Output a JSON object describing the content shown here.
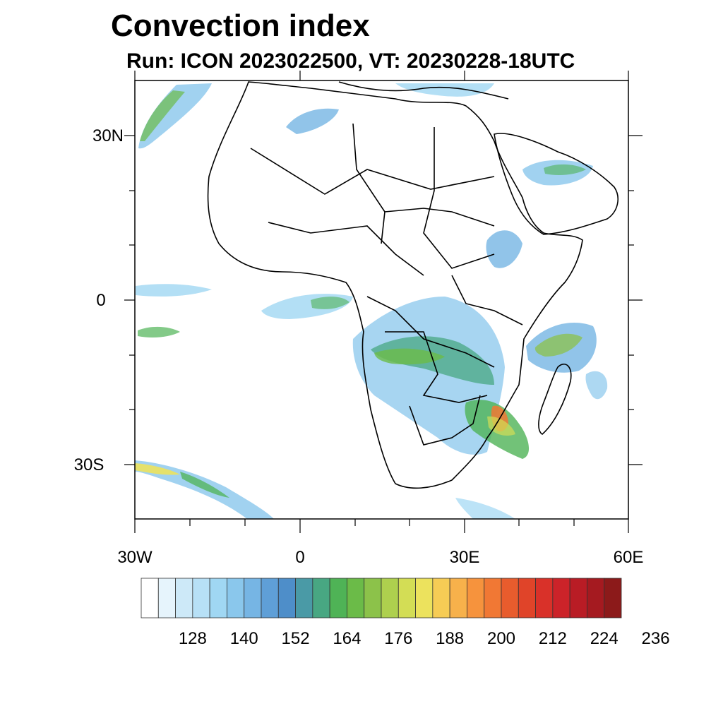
{
  "title": "Convection index",
  "subtitle": "Run: ICON 2023022500,  VT: 20230228-18UTC",
  "lat_labels": [
    "30N",
    "0",
    "30S"
  ],
  "lon_labels": [
    "30W",
    "0",
    "30E",
    "60E"
  ],
  "colorbar": {
    "colors": [
      "#ffffff",
      "#e6f4fc",
      "#cde9f8",
      "#b7e0f6",
      "#a0d7f3",
      "#8ac7ec",
      "#76b5e4",
      "#5f9fd7",
      "#4e8ec9",
      "#4a9aa6",
      "#48a782",
      "#4fb356",
      "#6bbb48",
      "#8cc24a",
      "#aed04e",
      "#d3dd55",
      "#ece25d",
      "#f6cc55",
      "#f7b14b",
      "#f6933d",
      "#f17834",
      "#e85c2d",
      "#e04429",
      "#d93129",
      "#cc2329",
      "#b91c25",
      "#a51a20",
      "#8c1a1a"
    ],
    "labels": [
      "128",
      "140",
      "152",
      "164",
      "176",
      "188",
      "200",
      "212",
      "224",
      "236"
    ]
  }
}
